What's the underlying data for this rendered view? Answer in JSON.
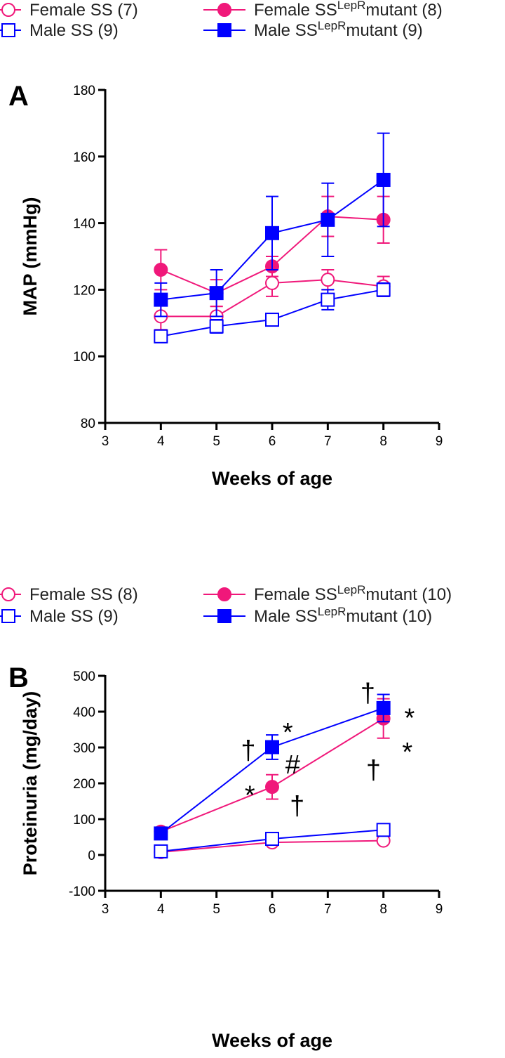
{
  "colors": {
    "female": "#F0187A",
    "male": "#0000FF",
    "axis": "#000000"
  },
  "chart_data": [
    {
      "type": "line",
      "panel_label": "A",
      "xlabel": "Weeks of age",
      "ylabel": "MAP (mmHg)",
      "xlim": [
        3,
        9
      ],
      "ylim": [
        80,
        180
      ],
      "xticks": [
        3,
        4,
        5,
        6,
        7,
        8,
        9
      ],
      "yticks": [
        80,
        100,
        120,
        140,
        160,
        180
      ],
      "legend_placement": "top",
      "x": [
        4,
        5,
        6,
        7,
        8
      ],
      "series": [
        {
          "name": "Female SS (7)",
          "legend": {
            "pre": "Female SS (7)",
            "sup": "",
            "post": ""
          },
          "color": "female",
          "marker": "open-circle",
          "values": [
            112,
            112,
            122,
            123,
            121
          ],
          "errors": [
            4,
            3,
            4,
            3,
            3
          ]
        },
        {
          "name": "Female SS LepR mutant (8)",
          "legend": {
            "pre": "Female SS",
            "sup": "LepR",
            "post": "mutant (8)"
          },
          "color": "female",
          "marker": "filled-circle",
          "values": [
            126,
            119,
            127,
            142,
            141
          ],
          "errors": [
            6,
            4,
            3,
            6,
            7
          ]
        },
        {
          "name": "Male SS (9)",
          "legend": {
            "pre": "Male SS (9)",
            "sup": "",
            "post": ""
          },
          "color": "male",
          "marker": "open-square",
          "values": [
            106,
            109,
            111,
            117,
            120
          ],
          "errors": [
            1,
            2,
            1,
            3,
            2
          ]
        },
        {
          "name": "Male SS LepR mutant (9)",
          "legend": {
            "pre": "Male SS",
            "sup": "LepR",
            "post": "mutant (9)"
          },
          "color": "male",
          "marker": "filled-square",
          "values": [
            117,
            119,
            137,
            141,
            153
          ],
          "errors": [
            5,
            7,
            11,
            11,
            14
          ]
        }
      ],
      "annotations": []
    },
    {
      "type": "line",
      "panel_label": "B",
      "xlabel": "Weeks of age",
      "ylabel": "Proteinuria (mg/day)",
      "xlim": [
        3,
        9
      ],
      "ylim": [
        -100,
        500
      ],
      "xticks": [
        3,
        4,
        5,
        6,
        7,
        8,
        9
      ],
      "yticks": [
        -100,
        0,
        100,
        200,
        300,
        400,
        500
      ],
      "legend_placement": "top",
      "x": [
        4,
        6,
        8
      ],
      "series": [
        {
          "name": "Female SS (8)",
          "legend": {
            "pre": "Female SS (8)",
            "sup": "",
            "post": ""
          },
          "color": "female",
          "marker": "open-circle",
          "values": [
            8,
            35,
            40
          ],
          "errors": [
            2,
            4,
            5
          ]
        },
        {
          "name": "Female SS LepR mutant (10)",
          "legend": {
            "pre": "Female SS",
            "sup": "LepR",
            "post": "mutant (10)"
          },
          "color": "female",
          "marker": "filled-circle",
          "values": [
            65,
            190,
            381
          ],
          "errors": [
            5,
            34,
            55
          ]
        },
        {
          "name": "Male SS (9)",
          "legend": {
            "pre": "Male SS (9)",
            "sup": "",
            "post": ""
          },
          "color": "male",
          "marker": "open-square",
          "values": [
            10,
            45,
            70
          ],
          "errors": [
            2,
            4,
            6
          ]
        },
        {
          "name": "Male SS LepR mutant (10)",
          "legend": {
            "pre": "Male SS",
            "sup": "LepR",
            "post": "mutant (10)"
          },
          "color": "male",
          "marker": "filled-square",
          "values": [
            60,
            301,
            410
          ],
          "errors": [
            5,
            34,
            38
          ]
        }
      ],
      "annotations": [
        {
          "text": "†",
          "x": 5.57,
          "y": 295
        },
        {
          "text": "*",
          "x": 6.28,
          "y": 345
        },
        {
          "text": "#",
          "x": 6.37,
          "y": 255
        },
        {
          "text": "*",
          "x": 5.6,
          "y": 170
        },
        {
          "text": "†",
          "x": 6.45,
          "y": 140
        },
        {
          "text": "†",
          "x": 7.72,
          "y": 455
        },
        {
          "text": "*",
          "x": 8.47,
          "y": 385
        },
        {
          "text": "*",
          "x": 8.43,
          "y": 290
        },
        {
          "text": "†",
          "x": 7.82,
          "y": 240
        }
      ]
    }
  ]
}
